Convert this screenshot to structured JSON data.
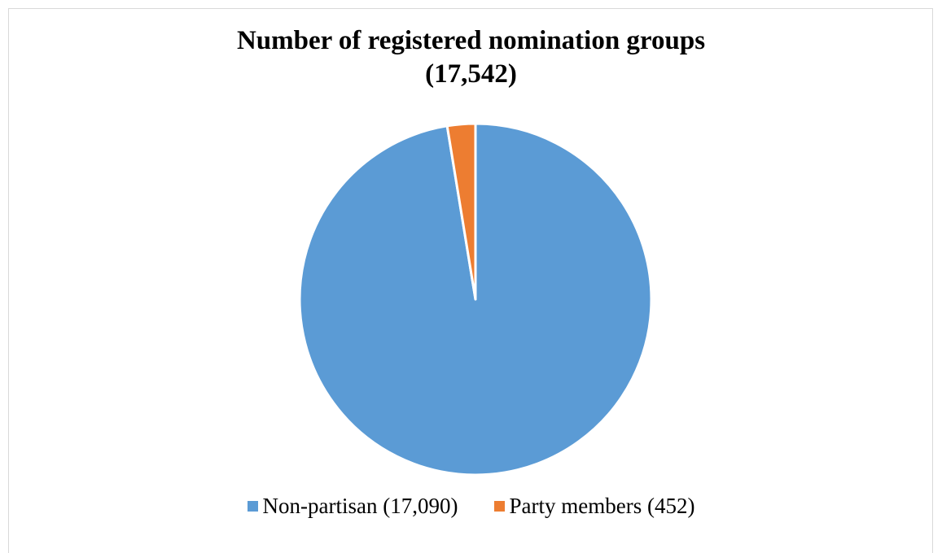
{
  "chart_data": {
    "type": "pie",
    "title_line1": "Number of registered nomination groups",
    "title_line2": "(17,542)",
    "series": [
      {
        "name": "Non-partisan (17,090)",
        "value": 17090,
        "color": "#5b9bd5"
      },
      {
        "name": "Party members (452)",
        "value": 452,
        "color": "#ed7d31"
      }
    ],
    "start_angle_deg": 0,
    "direction": "clockwise",
    "legend_position": "bottom"
  }
}
